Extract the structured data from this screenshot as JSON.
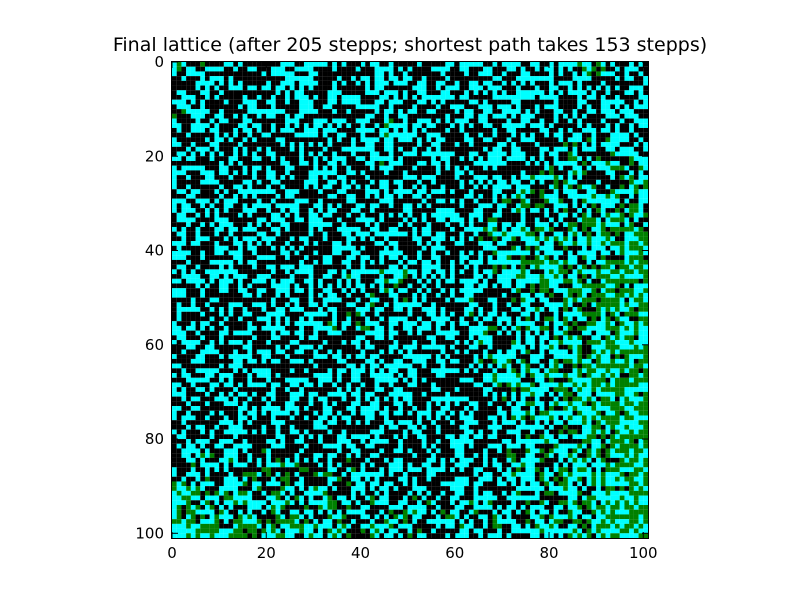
{
  "chart_data": {
    "type": "heatmap",
    "title": "Final lattice (after 205 stepps; shortest path takes 153 stepps)",
    "xlabel": "",
    "ylabel": "",
    "rows": 101,
    "cols": 101,
    "xlim": [
      0,
      101
    ],
    "ylim": [
      101,
      0
    ],
    "x_ticks": [
      "0",
      "20",
      "40",
      "60",
      "80",
      "100"
    ],
    "y_ticks": [
      "0",
      "20",
      "40",
      "60",
      "80",
      "100"
    ],
    "x_tick_values": [
      0,
      20,
      40,
      60,
      80,
      100
    ],
    "y_tick_values": [
      0,
      20,
      40,
      60,
      80,
      100
    ],
    "grid": false,
    "legend": "none",
    "states": [
      {
        "value": 0,
        "color": "#000000"
      },
      {
        "value": 1,
        "color": "#00ffff"
      },
      {
        "value": 2,
        "color": "#008000"
      }
    ],
    "lattice_summary": {
      "black_dominant_region": "upper-left and central area (rows 0-85, cols 0-75)",
      "green_dominant_region": "right side (cols 75-101, rows 15-101) and bottom-left (rows 80-101, cols 0-40)",
      "cyan": "interspersed throughout as background checker"
    }
  },
  "colors": {
    "black": "#000000",
    "cyan": "#00ffff",
    "green": "#008000",
    "frame": "#000000",
    "background": "#ffffff"
  }
}
